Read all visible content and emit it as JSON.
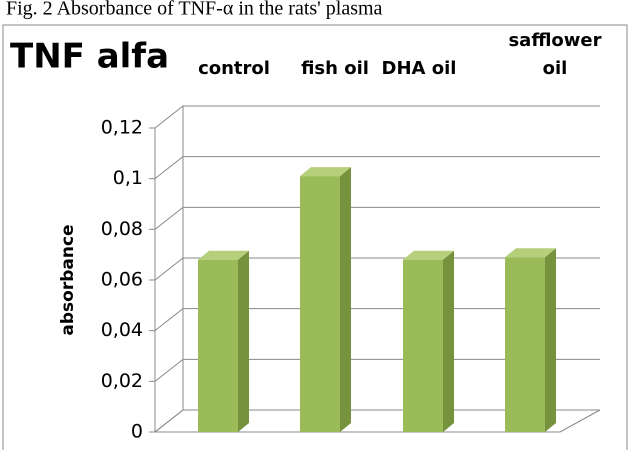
{
  "caption": "Fig. 2 Absorbance of TNF-α in the rats' plasma",
  "chart_data": {
    "type": "bar3d",
    "title": "TNF alfa",
    "y_label": "absorbance",
    "categories": [
      "control",
      "fish oil",
      "DHA oil",
      "safflower oil"
    ],
    "values": [
      0.068,
      0.101,
      0.068,
      0.069
    ],
    "color": "#9bbb59",
    "ylim": [
      0,
      0.12
    ],
    "yticks": [
      0,
      {
        "value": 0.02,
        "label": "0,02"
      },
      {
        "value": 0.04,
        "label": "0,04"
      },
      {
        "value": 0.06,
        "label": "0,06"
      },
      {
        "value": 0.08,
        "label": "0,08"
      },
      {
        "value": 0.1,
        "label": "0,1"
      },
      {
        "value": 0.12,
        "label": "0,12"
      }
    ],
    "grid": true
  }
}
